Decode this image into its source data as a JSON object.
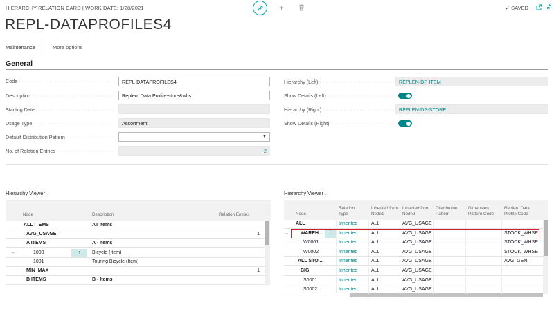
{
  "header": {
    "caption": "HIERARCHY RELATION CARD | WORK DATE: 1/28/2021",
    "title": "REPL-DATAPROFILES4",
    "saved": "SAVED",
    "saved_check": "✓",
    "icons": [
      "edit-icon",
      "add-icon",
      "delete-icon",
      "open-new-window-icon",
      "collapse-icon"
    ]
  },
  "actionbar": {
    "maintenance": "Maintenance",
    "more_options": "More options"
  },
  "general": {
    "title": "General",
    "left_fields": [
      {
        "label": "Code",
        "value": "REPL-DATAPROFILES4"
      },
      {
        "label": "Description",
        "value": "Replen. Data Profile-store&whs"
      },
      {
        "label": "Starting Date",
        "value": ""
      },
      {
        "label": "Usage Type",
        "value": "Assortment"
      },
      {
        "label": "Default Distribution Pattern",
        "value": ""
      },
      {
        "label": "No. of Relation Entries",
        "value": "2"
      }
    ],
    "right_fields": [
      {
        "label": "Hierarchy (Left)",
        "value": "REPLEN-DP-ITEM"
      },
      {
        "label": "Show Details (Left)",
        "value": "on"
      },
      {
        "label": "Hierarchy (Right)",
        "value": "REPLEN-DP-STORE"
      },
      {
        "label": "Show Details (Right)",
        "value": "on"
      }
    ]
  },
  "left_viewer": {
    "title": "Hierarchy Viewer",
    "columns": [
      "Node",
      "Description",
      "Relation Entries"
    ],
    "rows": [
      {
        "node": "ALL ITEMS",
        "desc": "All Items",
        "entries": "",
        "bold": true
      },
      {
        "node": "AVG_USAGE",
        "desc": "",
        "entries": "1",
        "bold": true
      },
      {
        "node": "A ITEMS",
        "desc": "A - Items",
        "entries": "",
        "bold": true
      },
      {
        "node": "1000",
        "desc": "Bicycle (Item)",
        "entries": "",
        "bold": false,
        "current": true
      },
      {
        "node": "1001",
        "desc": "Touring Bicycle (Item)",
        "entries": "",
        "bold": false
      },
      {
        "node": "MIN_MAX",
        "desc": "",
        "entries": "1",
        "bold": true
      },
      {
        "node": "B ITEMS",
        "desc": "B - Items",
        "entries": "",
        "bold": true
      }
    ]
  },
  "right_viewer": {
    "title": "Hierarchy Viewer",
    "columns": [
      "Node",
      "Relation Type",
      "Inherited from Node1",
      "Inherited from Node2",
      "Distribution Pattern",
      "Dimension Pattern Code",
      "Replen. Data Profile Code"
    ],
    "rows": [
      {
        "node": "ALL",
        "type": "Inherited",
        "n1": "ALL",
        "n2": "AVG_USAGE",
        "profile": "",
        "bold": true
      },
      {
        "node": "WAREH...",
        "type": "Inherited",
        "n1": "ALL",
        "n2": "AVG_USAGE",
        "profile": "STOCK_WHSE",
        "bold": true,
        "current": true
      },
      {
        "node": "W0001",
        "type": "Inherited",
        "n1": "ALL",
        "n2": "AVG_USAGE",
        "profile": "STOCK_WHSE",
        "bold": false
      },
      {
        "node": "W0002",
        "type": "Inherited",
        "n1": "ALL",
        "n2": "AVG_USAGE",
        "profile": "STOCK_WHSE",
        "bold": false
      },
      {
        "node": "ALL STO...",
        "type": "Inherited",
        "n1": "ALL",
        "n2": "AVG_USAGE",
        "profile": "AVG_GEN",
        "bold": true
      },
      {
        "node": "BIG",
        "type": "Inherited",
        "n1": "ALL",
        "n2": "AVG_USAGE",
        "profile": "",
        "bold": true
      },
      {
        "node": "S0001",
        "type": "Inherited",
        "n1": "ALL",
        "n2": "AVG_USAGE",
        "profile": "",
        "bold": false
      },
      {
        "node": "S0002",
        "type": "Inherited",
        "n1": "ALL",
        "n2": "AVG_USAGE",
        "profile": "",
        "bold": false
      }
    ]
  },
  "colors": {
    "accent": "#00a3a8",
    "link": "#00868b",
    "highlight": "#d0202f"
  }
}
